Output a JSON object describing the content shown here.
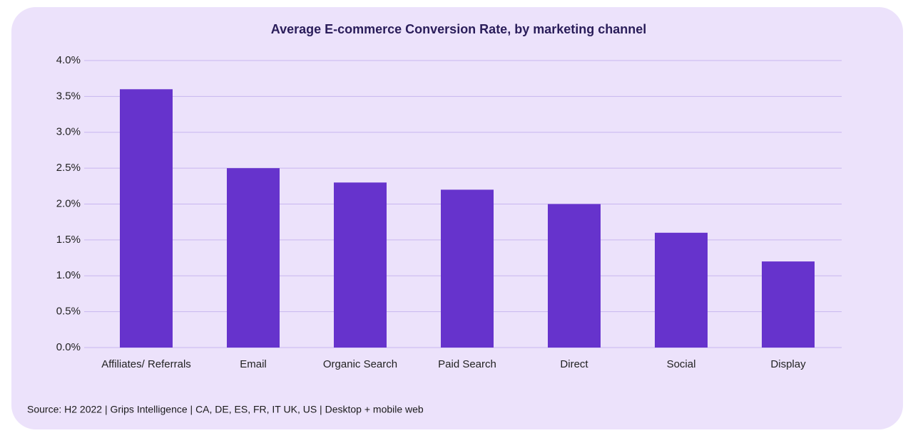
{
  "chart_data": {
    "type": "bar",
    "title": "Average E-commerce Conversion Rate, by marketing channel",
    "categories": [
      "Affiliates/ Referrals",
      "Email",
      "Organic Search",
      "Paid Search",
      "Direct",
      "Social",
      "Display"
    ],
    "values": [
      3.6,
      2.5,
      2.3,
      2.2,
      2.0,
      1.6,
      1.2
    ],
    "color": "#6633cc",
    "ylim": [
      0,
      4
    ],
    "yticks": [
      {
        "value": 0,
        "label": "0.0%"
      },
      {
        "value": 0.5,
        "label": "0.5%"
      },
      {
        "value": 1,
        "label": "1.0%"
      },
      {
        "value": 1.5,
        "label": "1.5%"
      },
      {
        "value": 2,
        "label": "2.0%"
      },
      {
        "value": 2.5,
        "label": "2.5%"
      },
      {
        "value": 3,
        "label": "3.0%"
      },
      {
        "value": 3.5,
        "label": "3.5%"
      },
      {
        "value": 4,
        "label": "4.0%"
      }
    ],
    "grid": true,
    "source": "Source: H2 2022 | Grips Intelligence | CA, DE, ES, FR, IT UK, US | Desktop + mobile web"
  }
}
